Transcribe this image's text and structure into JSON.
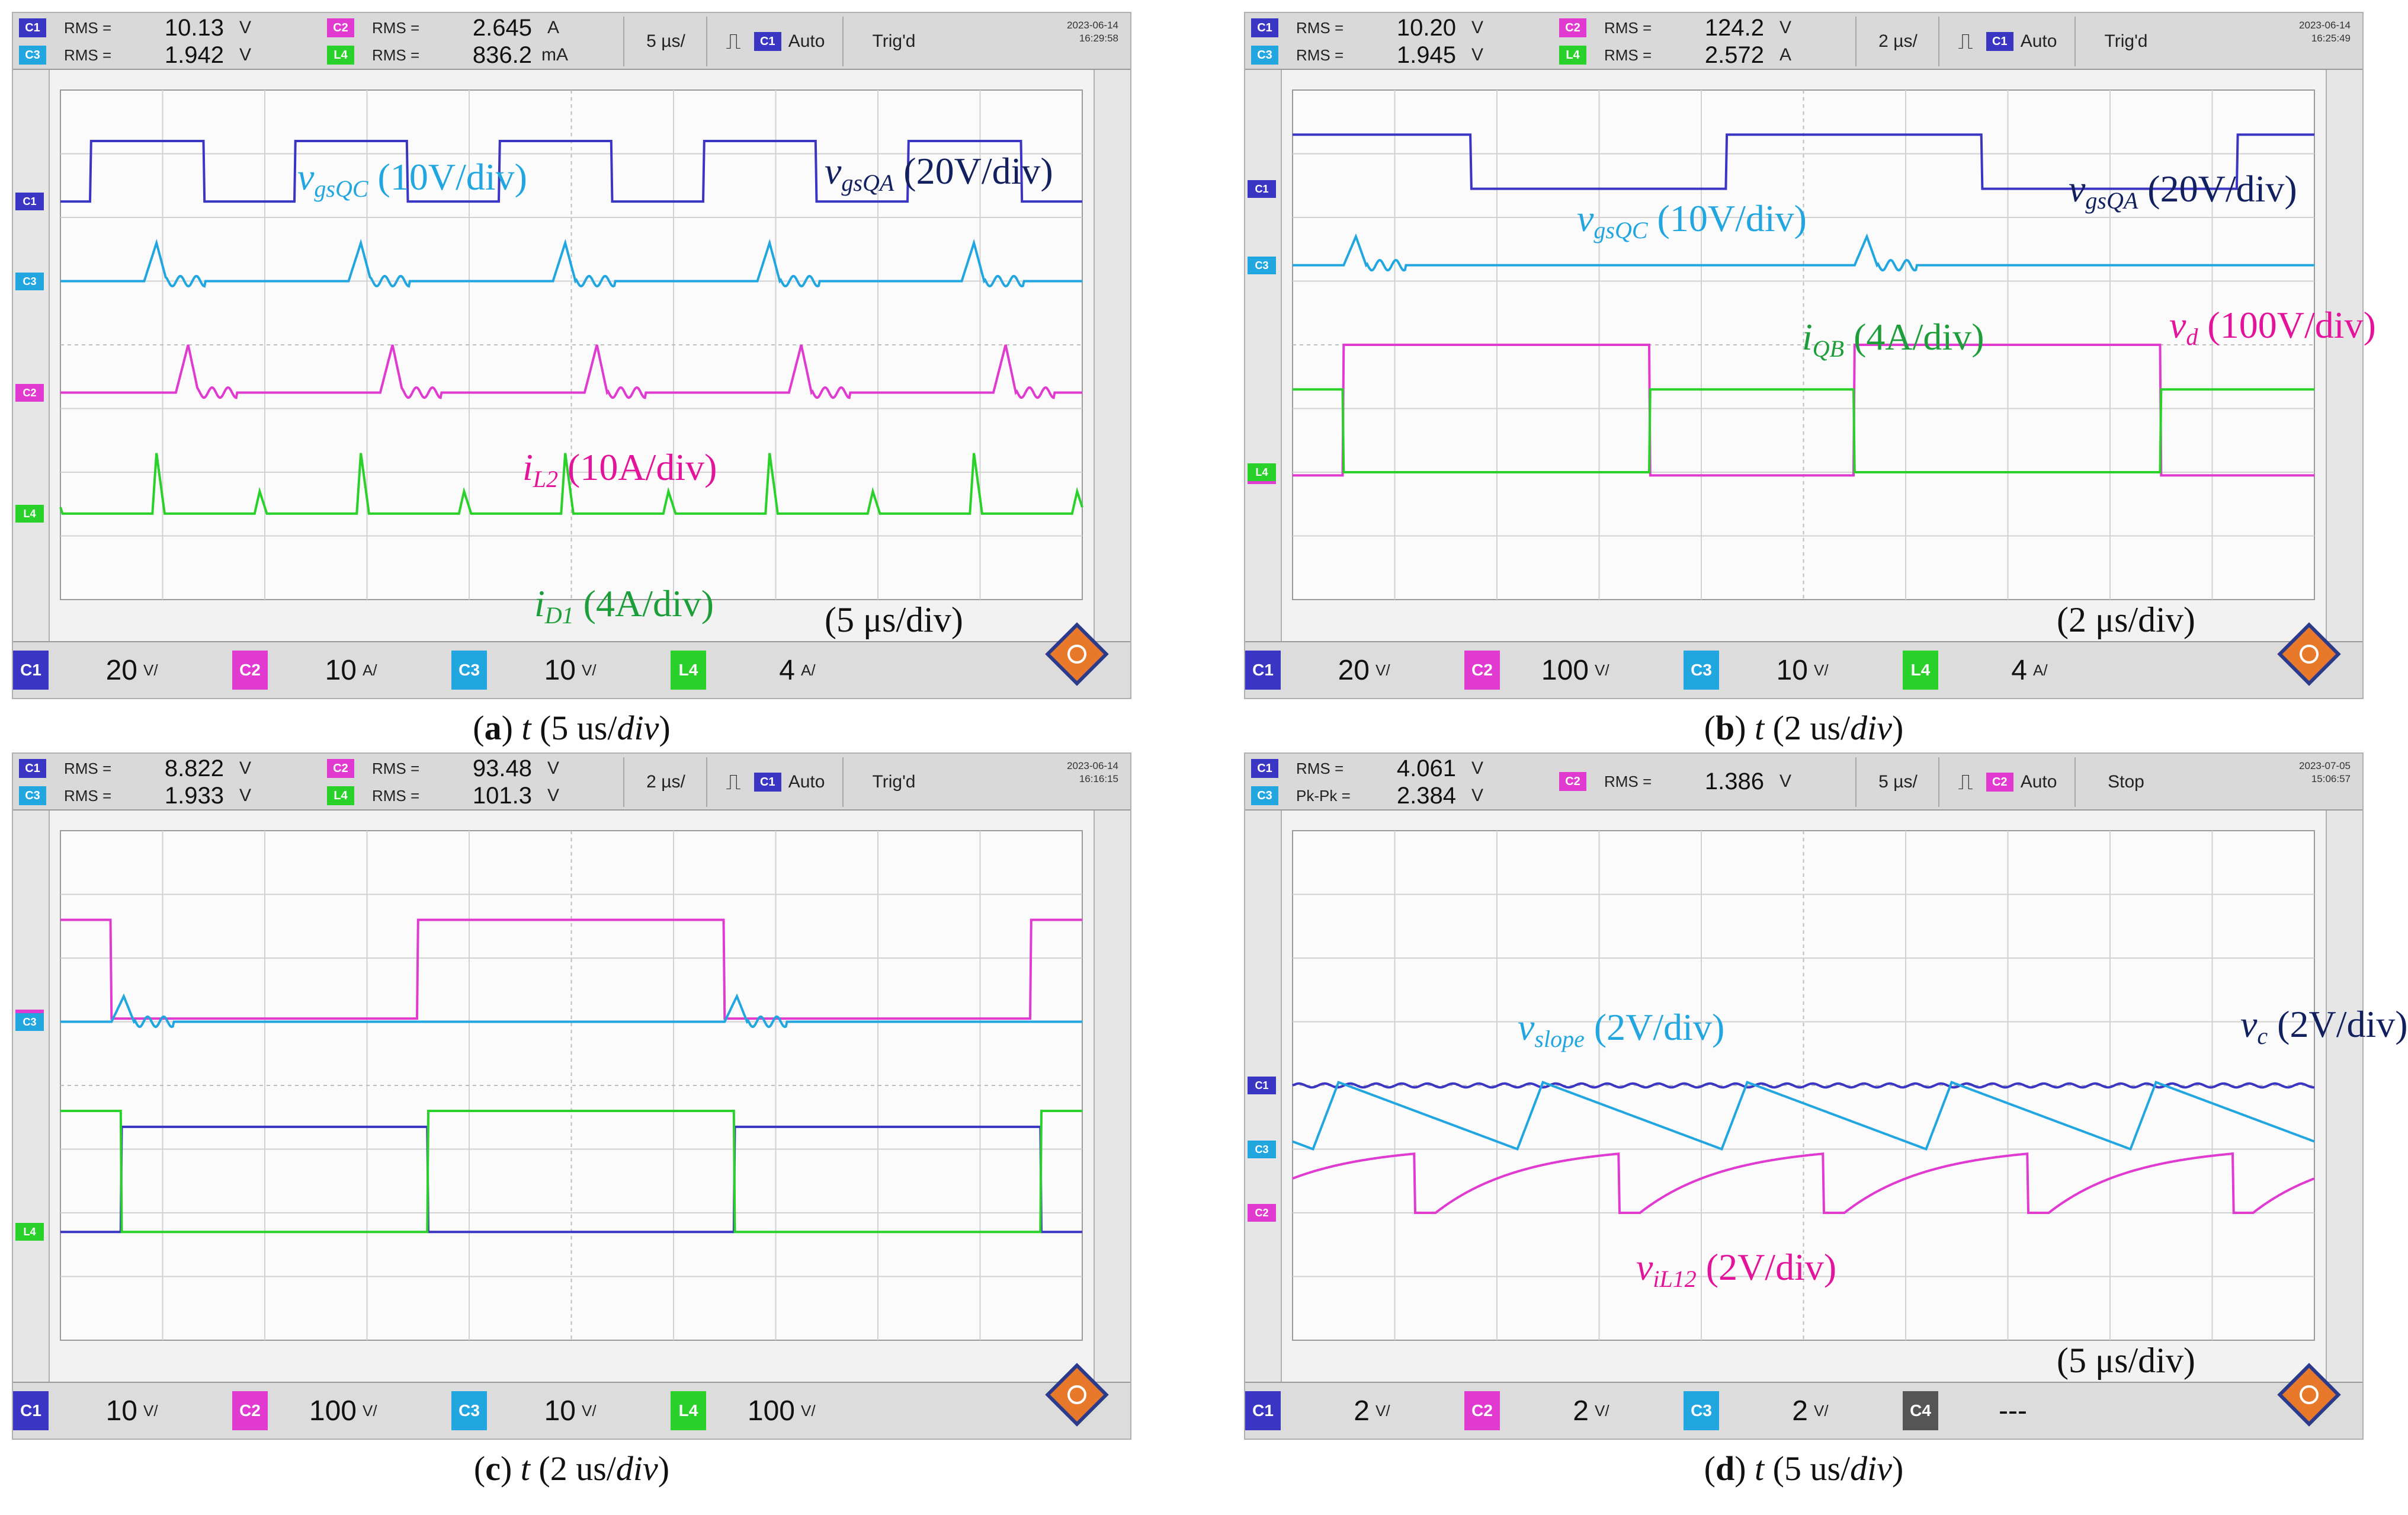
{
  "colors": {
    "C1": "#3b35c4",
    "C2": "#e03ad0",
    "C3": "#21a6e0",
    "L4": "#2ad12a",
    "navy_label": "#12205f",
    "vgsqc_label": "#21a6e0",
    "pink_label": "#e3149b",
    "green_label": "#1e9e3a"
  },
  "panels": [
    {
      "id": "a",
      "caption": {
        "letter": "a",
        "var": "t",
        "rest": "(5 us/",
        "unit": "div",
        "close": ")"
      },
      "measurements": [
        {
          "ch": "C1",
          "label": "RMS =",
          "value": "10.13",
          "unit": "V"
        },
        {
          "ch": "C2",
          "label": "RMS =",
          "value": "2.645",
          "unit": "A"
        },
        {
          "ch": "C3",
          "label": "RMS =",
          "value": "1.942",
          "unit": "V"
        },
        {
          "ch": "L4",
          "label": "RMS =",
          "value": "836.2",
          "unit": "mA"
        }
      ],
      "timebase": "5 µs/",
      "trig_ch": "C1",
      "trig_mode": "Auto",
      "status": "Trig'd",
      "date": "2023-06-14",
      "time": "16:29:58",
      "footer": [
        {
          "ch": "C1",
          "value": "20",
          "unit": "V/"
        },
        {
          "ch": "C2",
          "value": "10",
          "unit": "A/"
        },
        {
          "ch": "C3",
          "value": "10",
          "unit": "V/"
        },
        {
          "ch": "L4",
          "value": "4",
          "unit": "A/"
        }
      ],
      "timediv": "(5 μs/div)",
      "annotations": [
        {
          "name": "vgsqa",
          "main": "v",
          "sub": "gsQA",
          "scale": "(20V/div)",
          "color": "navy_label"
        },
        {
          "name": "vgsqc",
          "main": "v",
          "sub": "gsQC",
          "scale": "(10V/div)",
          "color": "vgsqc_label"
        },
        {
          "name": "il2",
          "main": "i",
          "sub": "L2",
          "scale": "(10A/div)",
          "color": "pink_label"
        },
        {
          "name": "id1",
          "main": "i",
          "sub": "D1",
          "scale": "(4A/div)",
          "color": "green_label"
        }
      ]
    },
    {
      "id": "b",
      "caption": {
        "letter": "b",
        "var": "t",
        "rest": "(2 us/",
        "unit": "div",
        "close": ")"
      },
      "measurements": [
        {
          "ch": "C1",
          "label": "RMS =",
          "value": "10.20",
          "unit": "V"
        },
        {
          "ch": "C2",
          "label": "RMS =",
          "value": "124.2",
          "unit": "V"
        },
        {
          "ch": "C3",
          "label": "RMS =",
          "value": "1.945",
          "unit": "V"
        },
        {
          "ch": "L4",
          "label": "RMS =",
          "value": "2.572",
          "unit": "A"
        }
      ],
      "timebase": "2 µs/",
      "trig_ch": "C1",
      "trig_mode": "Auto",
      "status": "Trig'd",
      "date": "2023-06-14",
      "time": "16:25:49",
      "footer": [
        {
          "ch": "C1",
          "value": "20",
          "unit": "V/"
        },
        {
          "ch": "C2",
          "value": "100",
          "unit": "V/"
        },
        {
          "ch": "C3",
          "value": "10",
          "unit": "V/"
        },
        {
          "ch": "L4",
          "value": "4",
          "unit": "A/"
        }
      ],
      "timediv": "(2 μs/div)",
      "annotations": [
        {
          "name": "vgsqa",
          "main": "v",
          "sub": "gsQA",
          "scale": "(20V/div)",
          "color": "navy_label"
        },
        {
          "name": "vgsqc",
          "main": "v",
          "sub": "gsQC",
          "scale": "(10V/div)",
          "color": "vgsqc_label"
        },
        {
          "name": "iqb",
          "main": "i",
          "sub": "QB",
          "scale": "(4A/div)",
          "color": "green_label"
        },
        {
          "name": "vd",
          "main": "v",
          "sub": "d",
          "scale": "(100V/div)",
          "color": "pink_label"
        }
      ]
    },
    {
      "id": "c",
      "caption": {
        "letter": "c",
        "var": "t",
        "rest": "(2 us/",
        "unit": "div",
        "close": ")"
      },
      "measurements": [
        {
          "ch": "C1",
          "label": "RMS =",
          "value": "8.822",
          "unit": "V"
        },
        {
          "ch": "C2",
          "label": "RMS =",
          "value": "93.48",
          "unit": "V"
        },
        {
          "ch": "C3",
          "label": "RMS =",
          "value": "1.933",
          "unit": "V"
        },
        {
          "ch": "L4",
          "label": "RMS =",
          "value": "101.3",
          "unit": "V"
        }
      ],
      "timebase": "2 µs/",
      "trig_ch": "C1",
      "trig_mode": "Auto",
      "status": "Trig'd",
      "date": "2023-06-14",
      "time": "16:16:15",
      "footer": [
        {
          "ch": "C1",
          "value": "10",
          "unit": "V/"
        },
        {
          "ch": "C2",
          "value": "100",
          "unit": "V/"
        },
        {
          "ch": "C3",
          "value": "10",
          "unit": "V/"
        },
        {
          "ch": "L4",
          "value": "100",
          "unit": "V/"
        }
      ],
      "timediv": "",
      "annotations": []
    },
    {
      "id": "d",
      "caption": {
        "letter": "d",
        "var": "t",
        "rest": "(5 us/",
        "unit": "div",
        "close": ")"
      },
      "measurements": [
        {
          "ch": "C1",
          "label": "RMS =",
          "value": "4.061",
          "unit": "V"
        },
        {
          "ch": "C2",
          "label": "RMS =",
          "value": "1.386",
          "unit": "V"
        },
        {
          "ch": "C3",
          "label": "Pk-Pk =",
          "value": "2.384",
          "unit": "V"
        }
      ],
      "timebase": "5 µs/",
      "trig_ch": "C2",
      "trig_mode": "Auto",
      "status": "Stop",
      "date": "2023-07-05",
      "time": "15:06:57",
      "footer": [
        {
          "ch": "C1",
          "value": "2",
          "unit": "V/"
        },
        {
          "ch": "C2",
          "value": "2",
          "unit": "V/"
        },
        {
          "ch": "C3",
          "value": "2",
          "unit": "V/"
        },
        {
          "ch": "C4",
          "value": "---",
          "unit": ""
        }
      ],
      "timediv": "(5 μs/div)",
      "annotations": [
        {
          "name": "vslope",
          "main": "v",
          "sub": "slope",
          "scale": "(2V/div)",
          "color": "vgsqc_label"
        },
        {
          "name": "vc",
          "main": "v",
          "sub": "c",
          "scale": "(2V/div)",
          "color": "navy_label"
        },
        {
          "name": "vil12",
          "main": "v",
          "sub": "iL12",
          "scale": "(2V/div)",
          "color": "pink_label"
        }
      ]
    }
  ],
  "chart_data": [
    {
      "type": "line",
      "panel": "a",
      "xlabel": "",
      "ylabel": "",
      "xlim": [
        0,
        10
      ],
      "ylim": [
        0,
        8
      ],
      "grid": true,
      "series": [
        {
          "name": "vgsQA (20V/div)",
          "channel": "C1",
          "shape": "square",
          "high": 7.2,
          "low": 6.25,
          "period": 2.0,
          "duty": 0.55,
          "phase": 0.3
        },
        {
          "name": "vgsQC (10V/div)",
          "channel": "C3",
          "shape": "pulses",
          "base": 5.0,
          "amp": 0.6,
          "period": 2.0,
          "phase": 0.82
        },
        {
          "name": "iL2 (10A/div)",
          "channel": "C2",
          "shape": "pulses",
          "base": 3.25,
          "amp": 0.75,
          "period": 2.0,
          "phase": 1.13
        },
        {
          "name": "iD1 (4A/div)",
          "channel": "L4",
          "shape": "spikes",
          "base": 1.35,
          "amp": 0.95,
          "period": 2.0,
          "phase": 0.9
        }
      ]
    },
    {
      "type": "line",
      "panel": "b",
      "xlabel": "",
      "ylabel": "",
      "xlim": [
        0,
        10
      ],
      "ylim": [
        0,
        8
      ],
      "grid": true,
      "series": [
        {
          "name": "vgsQA (20V/div)",
          "channel": "C1",
          "shape": "square",
          "high": 7.3,
          "low": 6.45,
          "period": 5.0,
          "duty": 0.5,
          "phase": 4.25
        },
        {
          "name": "vgsQC (10V/div)",
          "channel": "C3",
          "shape": "pulses",
          "base": 5.25,
          "amp": 0.45,
          "period": 5.0,
          "phase": 0.5
        },
        {
          "name": "vd (100V/div)",
          "channel": "C2",
          "shape": "square",
          "high": 4.0,
          "low": 1.95,
          "period": 5.0,
          "duty": 0.6,
          "phase": 0.5
        },
        {
          "name": "iQB (4A/div)",
          "channel": "L4",
          "shape": "square",
          "high": 3.3,
          "low": 2.0,
          "period": 5.0,
          "duty": 0.4,
          "phase": 3.5
        }
      ]
    },
    {
      "type": "line",
      "panel": "c",
      "xlabel": "",
      "ylabel": "",
      "xlim": [
        0,
        10
      ],
      "ylim": [
        0,
        8
      ],
      "grid": true,
      "series": [
        {
          "name": "C2",
          "channel": "C2",
          "shape": "square",
          "high": 6.6,
          "low": 5.05,
          "period": 6.0,
          "duty": 0.5,
          "phase": 3.5
        },
        {
          "name": "C3",
          "channel": "C3",
          "shape": "pulses",
          "base": 5.0,
          "amp": 0.4,
          "period": 6.0,
          "phase": 0.5
        },
        {
          "name": "C1",
          "channel": "C1",
          "shape": "square",
          "high": 3.35,
          "low": 1.7,
          "period": 6.0,
          "duty": 0.5,
          "phase": 0.6
        },
        {
          "name": "L4",
          "channel": "L4",
          "shape": "square",
          "high": 3.6,
          "low": 1.7,
          "period": 6.0,
          "duty": 0.5,
          "phase": 3.6
        }
      ]
    },
    {
      "type": "line",
      "panel": "d",
      "xlabel": "",
      "ylabel": "",
      "xlim": [
        0,
        10
      ],
      "ylim": [
        0,
        8
      ],
      "grid": true,
      "series": [
        {
          "name": "vc (2V/div)",
          "channel": "C1",
          "shape": "flat",
          "base": 4.0
        },
        {
          "name": "vslope (2V/div)",
          "channel": "C3",
          "shape": "sawdown",
          "base": 3.0,
          "amp": 1.05,
          "period": 2.0,
          "phase": 0.2
        },
        {
          "name": "viL12 (2V/div)",
          "channel": "C2",
          "shape": "sawup",
          "base": 2.0,
          "amp": 1.05,
          "period": 2.0,
          "phase": 1.2
        }
      ]
    }
  ]
}
